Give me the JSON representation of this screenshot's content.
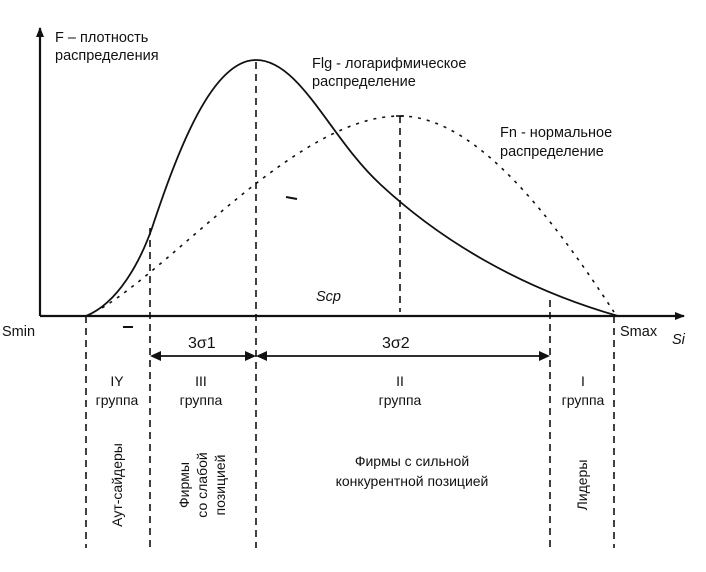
{
  "axes": {
    "y_label_line1": "F – плотность",
    "y_label_line2": "распределения",
    "x_label": "Si",
    "x_min_label": "Smin",
    "x_max_label": "Smax"
  },
  "curves": {
    "lognormal_line1": "Flg - логарифмическое",
    "lognormal_line2": "распределение",
    "normal_line1": "Fn - нормальное",
    "normal_line2": "распределение",
    "mean_label": "Scp"
  },
  "intervals": {
    "sigma1": "3σ1",
    "sigma2": "3σ2"
  },
  "groups": [
    {
      "roman": "IY",
      "word": "группа",
      "desc": [
        "Аут-сайдеры"
      ]
    },
    {
      "roman": "III",
      "word": "группа",
      "desc": [
        "Фирмы",
        "со слабой",
        "позицией"
      ]
    },
    {
      "roman": "II",
      "word": "группа",
      "desc": [
        "Фирмы с сильной",
        "конкурентной позицией"
      ]
    },
    {
      "roman": "I",
      "word": "группа",
      "desc": [
        "Лидеры"
      ]
    }
  ],
  "colors": {
    "ink": "#111111",
    "background": "#ffffff"
  }
}
